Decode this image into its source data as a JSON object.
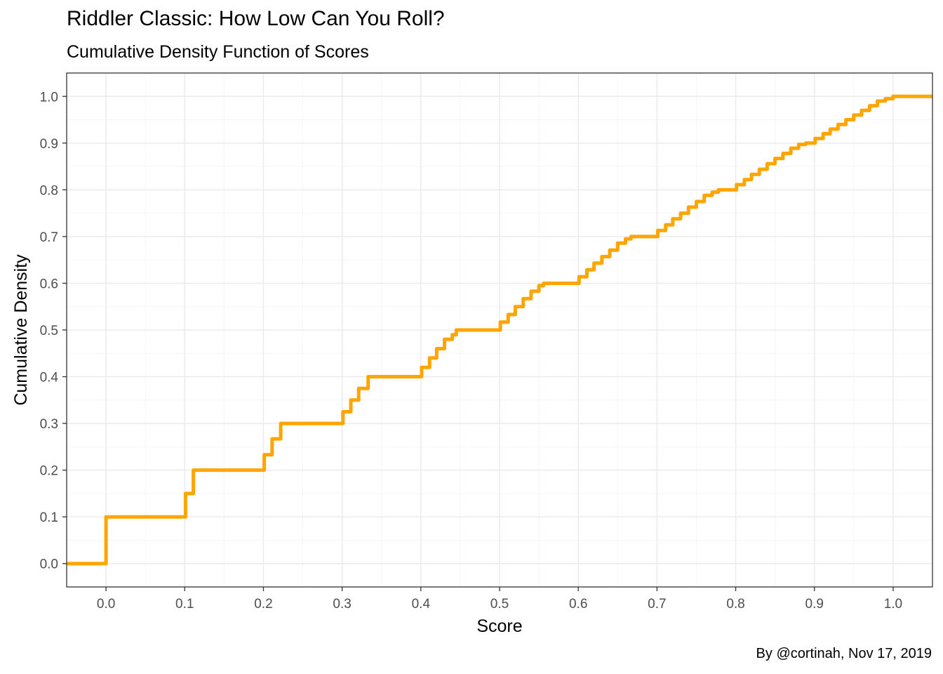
{
  "header": {
    "title": "Riddler Classic: How Low Can You Roll?",
    "subtitle": "Cumulative Density Function of Scores"
  },
  "caption": "By @cortinah, Nov 17, 2019",
  "colors": {
    "line": "#FFA500",
    "grid_major": "#ebebeb",
    "grid_minor": "#f5f5f5",
    "border": "#333333"
  },
  "chart_data": {
    "type": "line",
    "step": true,
    "xlabel": "Score",
    "ylabel": "Cumulative Density",
    "xlim": [
      -0.05,
      1.05
    ],
    "ylim": [
      -0.05,
      1.05
    ],
    "x_ticks": [
      "0.0",
      "0.1",
      "0.2",
      "0.3",
      "0.4",
      "0.5",
      "0.6",
      "0.7",
      "0.8",
      "0.9",
      "1.0"
    ],
    "y_ticks": [
      "0.0",
      "0.1",
      "0.2",
      "0.3",
      "0.4",
      "0.5",
      "0.6",
      "0.7",
      "0.8",
      "0.9",
      "1.0"
    ],
    "grid": true,
    "series": [
      {
        "x": [
          -0.05,
          0.0,
          0.1,
          0.101,
          0.111,
          0.2,
          0.201,
          0.211,
          0.222,
          0.3,
          0.301,
          0.311,
          0.321,
          0.333,
          0.4,
          0.401,
          0.411,
          0.42,
          0.43,
          0.44,
          0.445,
          0.5,
          0.501,
          0.511,
          0.52,
          0.53,
          0.54,
          0.55,
          0.556,
          0.6,
          0.601,
          0.611,
          0.62,
          0.63,
          0.64,
          0.65,
          0.66,
          0.667,
          0.7,
          0.701,
          0.711,
          0.72,
          0.73,
          0.74,
          0.75,
          0.76,
          0.77,
          0.778,
          0.8,
          0.801,
          0.811,
          0.82,
          0.83,
          0.84,
          0.85,
          0.86,
          0.87,
          0.88,
          0.889,
          0.9,
          0.901,
          0.911,
          0.92,
          0.93,
          0.94,
          0.95,
          0.96,
          0.97,
          0.98,
          0.99,
          1.0,
          1.05
        ],
        "y": [
          0.0,
          0.1,
          0.1,
          0.15,
          0.2,
          0.2,
          0.233,
          0.267,
          0.3,
          0.3,
          0.325,
          0.35,
          0.375,
          0.4,
          0.4,
          0.42,
          0.44,
          0.46,
          0.48,
          0.49,
          0.5,
          0.5,
          0.517,
          0.533,
          0.55,
          0.567,
          0.583,
          0.595,
          0.6,
          0.6,
          0.614,
          0.629,
          0.643,
          0.657,
          0.671,
          0.686,
          0.695,
          0.7,
          0.7,
          0.713,
          0.725,
          0.738,
          0.75,
          0.763,
          0.775,
          0.788,
          0.795,
          0.8,
          0.8,
          0.811,
          0.822,
          0.833,
          0.844,
          0.856,
          0.867,
          0.878,
          0.889,
          0.897,
          0.9,
          0.9,
          0.91,
          0.92,
          0.93,
          0.94,
          0.95,
          0.96,
          0.97,
          0.98,
          0.99,
          0.995,
          1.0,
          1.0
        ]
      }
    ]
  }
}
